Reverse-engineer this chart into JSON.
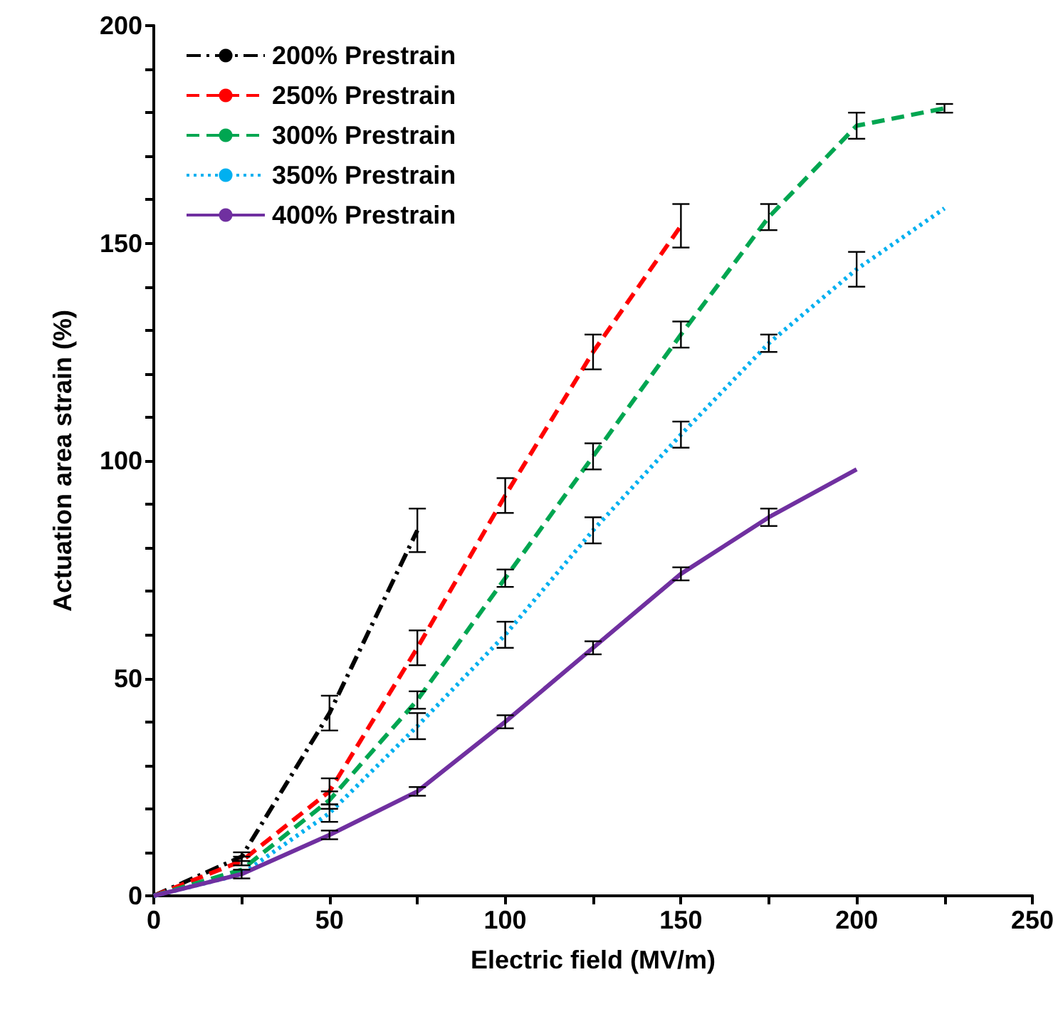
{
  "chart_data": {
    "type": "line",
    "xlabel": "Electric field (MV/m)",
    "ylabel": "Actuation area strain (%)",
    "xlim": [
      0,
      250
    ],
    "ylim": [
      0,
      200
    ],
    "xticks": [
      0,
      {
        "value": 25,
        "label": null
      },
      50,
      {
        "value": 75,
        "label": null
      },
      100,
      {
        "value": 125,
        "label": null
      },
      150,
      {
        "value": 175,
        "label": null
      },
      200,
      {
        "value": 225,
        "label": null
      },
      250
    ],
    "yticks": [
      0,
      {
        "value": 10,
        "label": null
      },
      {
        "value": 20,
        "label": null
      },
      {
        "value": 30,
        "label": null
      },
      {
        "value": 40,
        "label": null
      },
      50,
      {
        "value": 60,
        "label": null
      },
      {
        "value": 70,
        "label": null
      },
      {
        "value": 80,
        "label": null
      },
      {
        "value": 90,
        "label": null
      },
      100,
      {
        "value": 110,
        "label": null
      },
      {
        "value": 120,
        "label": null
      },
      {
        "value": 130,
        "label": null
      },
      {
        "value": 140,
        "label": null
      },
      150,
      {
        "value": 160,
        "label": null
      },
      {
        "value": 170,
        "label": null
      },
      {
        "value": 180,
        "label": null
      },
      {
        "value": 190,
        "label": null
      },
      200
    ],
    "grid": false,
    "legend": "top left",
    "marker": "none",
    "series": [
      {
        "name": "200% Prestrain",
        "color": "#000000",
        "line_style": "dashdot",
        "x": [
          0,
          25,
          50,
          75
        ],
        "values": [
          0,
          9,
          42,
          84
        ],
        "errors": [
          null,
          1,
          4,
          5
        ]
      },
      {
        "name": "250% Prestrain",
        "color": "#ff0000",
        "line_style": "dashed",
        "x": [
          0,
          25,
          50,
          75,
          100,
          125,
          150
        ],
        "values": [
          0,
          8,
          24,
          57,
          92,
          125,
          154
        ],
        "errors": [
          null,
          1,
          3,
          4,
          4,
          4,
          5
        ]
      },
      {
        "name": "300% Prestrain",
        "color": "#00a651",
        "line_style": "dashed",
        "x": [
          0,
          25,
          50,
          75,
          100,
          125,
          150,
          175,
          200,
          225
        ],
        "values": [
          0,
          6,
          22,
          45,
          73,
          101,
          129,
          156,
          177,
          181
        ],
        "errors": [
          null,
          null,
          2,
          2,
          2,
          3,
          3,
          3,
          3,
          1
        ]
      },
      {
        "name": "350% Prestrain",
        "color": "#00b0f0",
        "line_style": "dotted",
        "x": [
          0,
          25,
          50,
          75,
          100,
          125,
          150,
          175,
          200,
          225
        ],
        "values": [
          0,
          5,
          19,
          39,
          60,
          84,
          106,
          127,
          144,
          158
        ],
        "errors": [
          null,
          null,
          2,
          3,
          3,
          3,
          3,
          2,
          4,
          null
        ]
      },
      {
        "name": "400% Prestrain",
        "color": "#7030a0",
        "line_style": "solid",
        "x": [
          0,
          25,
          50,
          75,
          100,
          125,
          150,
          175,
          200
        ],
        "values": [
          0,
          5,
          14,
          24,
          40,
          57,
          74,
          87,
          98
        ],
        "errors": [
          null,
          1,
          1,
          1,
          1.5,
          1.5,
          1.5,
          2,
          null
        ]
      }
    ]
  }
}
